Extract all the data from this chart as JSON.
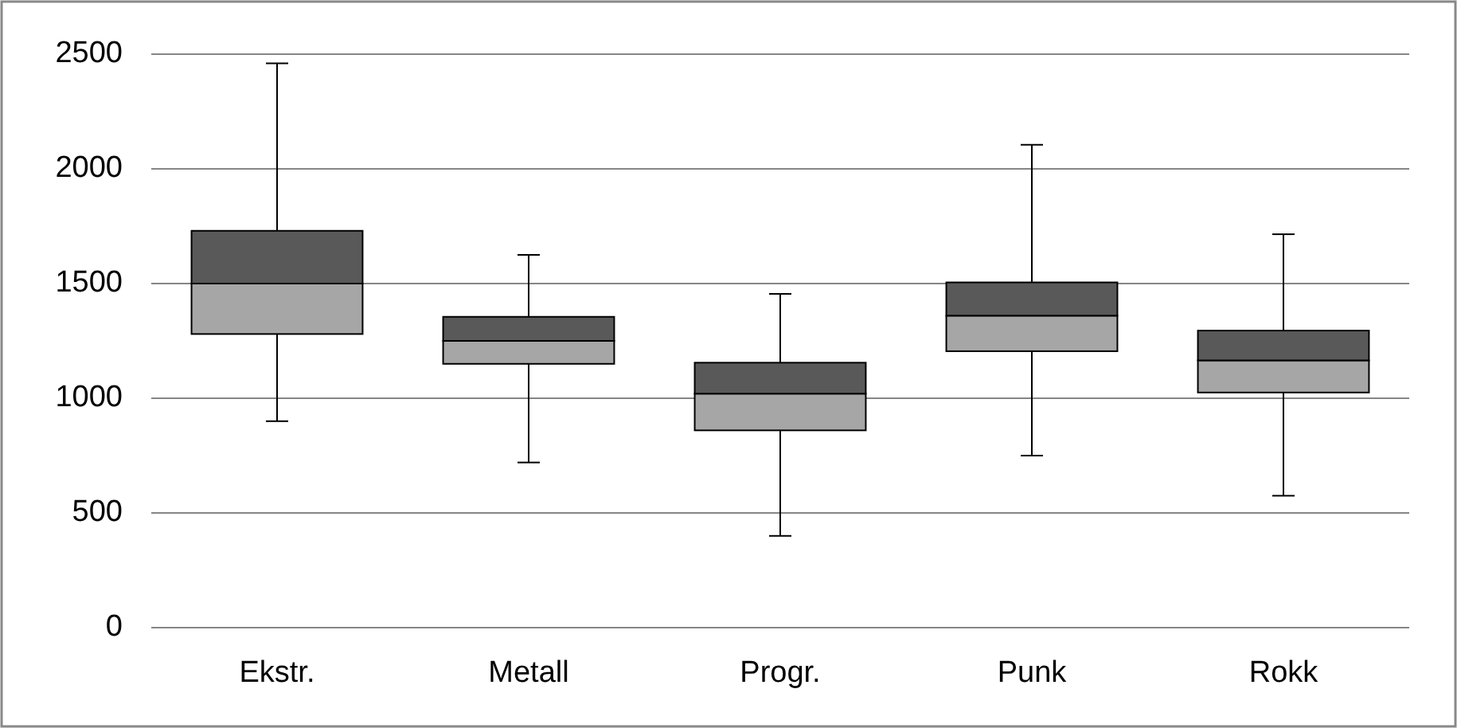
{
  "chart_data": {
    "type": "box",
    "categories": [
      "Ekstr.",
      "Metall",
      "Progr.",
      "Punk",
      "Rokk"
    ],
    "boxes": [
      {
        "low": 900,
        "q1": 1280,
        "median": 1500,
        "q3": 1730,
        "high": 2460
      },
      {
        "low": 720,
        "q1": 1150,
        "median": 1250,
        "q3": 1355,
        "high": 1625
      },
      {
        "low": 400,
        "q1": 860,
        "median": 1020,
        "q3": 1155,
        "high": 1455
      },
      {
        "low": 750,
        "q1": 1205,
        "median": 1360,
        "q3": 1505,
        "high": 2105
      },
      {
        "low": 575,
        "q1": 1025,
        "median": 1165,
        "q3": 1295,
        "high": 1715
      }
    ],
    "colors": [
      "#a6a6a6",
      "#a6a6a6",
      "#a6a6a6",
      "#a6a6a6",
      "#a6a6a6"
    ],
    "ylim": [
      0,
      2500
    ],
    "yticks": [
      0,
      500,
      1000,
      1500,
      2000,
      2500
    ],
    "grid": "y"
  }
}
